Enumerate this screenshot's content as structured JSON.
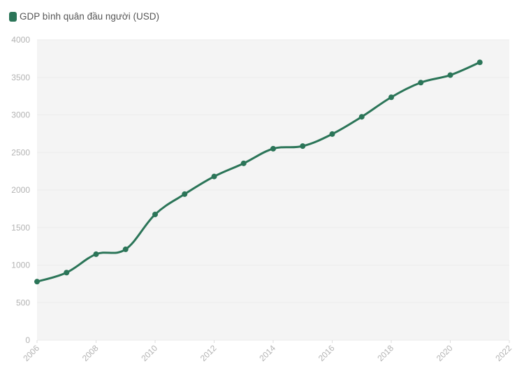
{
  "legend": {
    "label": "GDP bình quân đầu người (USD)",
    "color": "#2b7558"
  },
  "colors": {
    "line": "#2b7558",
    "plot_bg": "#f4f4f4",
    "grid": "#ebebeb",
    "tick_text": "#b3b3b3"
  },
  "chart_data": {
    "type": "line",
    "title": "",
    "xlabel": "",
    "ylabel": "",
    "legend": [
      "GDP bình quân đầu người (USD)"
    ],
    "legend_position": "top-left",
    "grid": true,
    "xlim": [
      2006,
      2022
    ],
    "ylim": [
      0,
      4000
    ],
    "x_ticks": [
      2006,
      2008,
      2010,
      2012,
      2014,
      2016,
      2018,
      2020,
      2022
    ],
    "y_ticks": [
      0,
      500,
      1000,
      1500,
      2000,
      2500,
      3000,
      3500,
      4000
    ],
    "x": [
      2006,
      2007,
      2008,
      2009,
      2010,
      2011,
      2012,
      2013,
      2014,
      2015,
      2016,
      2017,
      2018,
      2019,
      2020,
      2021
    ],
    "series": [
      {
        "name": "GDP bình quân đầu người (USD)",
        "values": [
          780,
          900,
          1145,
          1210,
          1675,
          1945,
          2180,
          2355,
          2550,
          2585,
          2745,
          2975,
          3235,
          3430,
          3530,
          3700
        ]
      }
    ]
  }
}
